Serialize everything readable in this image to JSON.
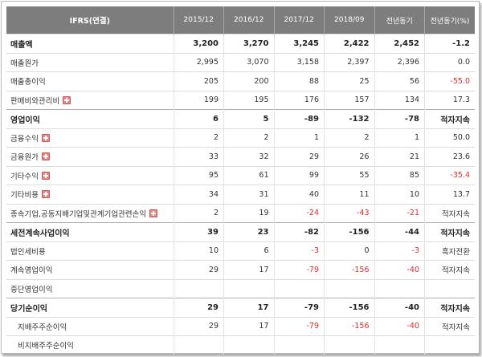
{
  "header": [
    "IFRS(연결)",
    "2015/12",
    "2016/12",
    "2017/12",
    "2018/09",
    "전년동기",
    "전년동기(%)"
  ],
  "rows": [
    {
      "label": "매출액",
      "bold": true,
      "expand": false,
      "sub": false,
      "values": [
        "3,200",
        "3,270",
        "3,245",
        "2,422",
        "2,452",
        "-1.2"
      ],
      "neg": [
        false,
        false,
        false,
        false,
        false,
        true
      ]
    },
    {
      "label": "매출원가",
      "bold": false,
      "expand": false,
      "sub": false,
      "values": [
        "2,995",
        "3,070",
        "3,158",
        "2,397",
        "2,396",
        "0.0"
      ],
      "neg": [
        false,
        false,
        false,
        false,
        false,
        false
      ]
    },
    {
      "label": "매출총이익",
      "bold": false,
      "expand": false,
      "sub": false,
      "values": [
        "205",
        "200",
        "88",
        "25",
        "56",
        "-55.0"
      ],
      "neg": [
        false,
        false,
        false,
        false,
        false,
        true
      ]
    },
    {
      "label": "판매비와관리비",
      "bold": false,
      "expand": true,
      "sub": false,
      "values": [
        "199",
        "195",
        "176",
        "157",
        "134",
        "17.3"
      ],
      "neg": [
        false,
        false,
        false,
        false,
        false,
        false
      ]
    },
    {
      "label": "영업이익",
      "bold": true,
      "expand": false,
      "sub": false,
      "values": [
        "6",
        "5",
        "-89",
        "-132",
        "-78",
        "적자지속"
      ],
      "neg": [
        false,
        false,
        true,
        true,
        true,
        false
      ]
    },
    {
      "label": "금융수익",
      "bold": false,
      "expand": true,
      "sub": false,
      "values": [
        "2",
        "2",
        "1",
        "2",
        "1",
        "50.0"
      ],
      "neg": [
        false,
        false,
        false,
        false,
        false,
        false
      ]
    },
    {
      "label": "금융원가",
      "bold": false,
      "expand": true,
      "sub": false,
      "values": [
        "33",
        "32",
        "29",
        "26",
        "21",
        "23.6"
      ],
      "neg": [
        false,
        false,
        false,
        false,
        false,
        false
      ]
    },
    {
      "label": "기타수익",
      "bold": false,
      "expand": true,
      "sub": false,
      "values": [
        "95",
        "61",
        "99",
        "55",
        "85",
        "-35.4"
      ],
      "neg": [
        false,
        false,
        false,
        false,
        false,
        true
      ]
    },
    {
      "label": "기타비용",
      "bold": false,
      "expand": true,
      "sub": false,
      "values": [
        "34",
        "31",
        "40",
        "11",
        "10",
        "13.7"
      ],
      "neg": [
        false,
        false,
        false,
        false,
        false,
        false
      ]
    },
    {
      "label": "종속기업,공동지배기업및관계기업관련손익",
      "bold": false,
      "expand": true,
      "sub": false,
      "values": [
        "2",
        "19",
        "-24",
        "-43",
        "-21",
        "적자지속"
      ],
      "neg": [
        false,
        false,
        true,
        true,
        true,
        false
      ]
    },
    {
      "label": "세전계속사업이익",
      "bold": true,
      "expand": false,
      "sub": false,
      "values": [
        "39",
        "23",
        "-82",
        "-156",
        "-44",
        "적자지속"
      ],
      "neg": [
        false,
        false,
        true,
        true,
        true,
        false
      ]
    },
    {
      "label": "법인세비용",
      "bold": false,
      "expand": false,
      "sub": false,
      "values": [
        "10",
        "6",
        "-3",
        "0",
        "-3",
        "흑자전환"
      ],
      "neg": [
        false,
        false,
        true,
        false,
        true,
        false
      ]
    },
    {
      "label": "계속영업이익",
      "bold": false,
      "expand": false,
      "sub": false,
      "values": [
        "29",
        "17",
        "-79",
        "-156",
        "-40",
        "적자지속"
      ],
      "neg": [
        false,
        false,
        true,
        true,
        true,
        false
      ]
    },
    {
      "label": "중단영업이익",
      "bold": false,
      "expand": false,
      "sub": false,
      "values": [
        "",
        "",
        "",
        "",
        "",
        ""
      ],
      "neg": [
        false,
        false,
        false,
        false,
        false,
        false
      ]
    },
    {
      "label": "당기순이익",
      "bold": true,
      "expand": false,
      "sub": false,
      "values": [
        "29",
        "17",
        "-79",
        "-156",
        "-40",
        "적자지속"
      ],
      "neg": [
        false,
        false,
        true,
        true,
        true,
        false
      ]
    },
    {
      "label": "지배주주순이익",
      "bold": false,
      "expand": false,
      "sub": true,
      "values": [
        "29",
        "17",
        "-79",
        "-156",
        "-40",
        "적자지속"
      ],
      "neg": [
        false,
        false,
        true,
        true,
        true,
        false
      ]
    },
    {
      "label": "비지배주주순이익",
      "bold": false,
      "expand": false,
      "sub": true,
      "values": [
        "",
        "",
        "",
        "",
        "",
        ""
      ],
      "neg": [
        false,
        false,
        false,
        false,
        false,
        false
      ]
    }
  ]
}
